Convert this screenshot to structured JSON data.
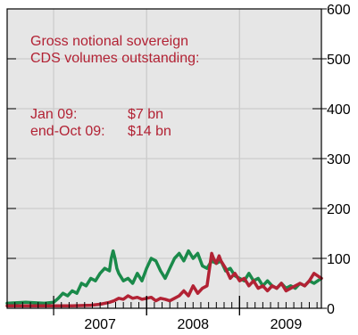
{
  "chart_data": {
    "type": "line",
    "title": "",
    "xlabel": "",
    "ylabel": "",
    "x_ticks": [
      "2007",
      "2008",
      "2009"
    ],
    "y_ticks": [
      "0",
      "100",
      "200",
      "300",
      "400",
      "500",
      "600"
    ],
    "ylim": [
      0,
      600
    ],
    "xlim": [
      2006.5,
      2009.88
    ],
    "grid": true,
    "y_axis_side": "right",
    "annotation": {
      "line1": "Gross notional sovereign",
      "line2": "CDS volumes outstanding:",
      "row1_label": "Jan 09:",
      "row1_value": "$7 bn",
      "row2_label": "end-Oct 09:",
      "row2_value": "$14 bn"
    },
    "colors": {
      "green": "#1a8a4a",
      "red": "#b22234",
      "grid": "#cccccc",
      "bg": "#e6e6e6"
    },
    "series": [
      {
        "color": "green",
        "x": [
          2006.5,
          2006.7,
          2006.9,
          2007.0,
          2007.05,
          2007.1,
          2007.15,
          2007.2,
          2007.25,
          2007.3,
          2007.35,
          2007.4,
          2007.45,
          2007.5,
          2007.55,
          2007.6,
          2007.62,
          2007.64,
          2007.66,
          2007.68,
          2007.7,
          2007.75,
          2007.8,
          2007.85,
          2007.9,
          2007.95,
          2008.0,
          2008.05,
          2008.1,
          2008.15,
          2008.2,
          2008.25,
          2008.3,
          2008.35,
          2008.4,
          2008.45,
          2008.5,
          2008.55,
          2008.6,
          2008.65,
          2008.7,
          2008.75,
          2008.8,
          2008.85,
          2008.9,
          2008.95,
          2009.0,
          2009.05,
          2009.1,
          2009.15,
          2009.2,
          2009.25,
          2009.3,
          2009.35,
          2009.4,
          2009.45,
          2009.5,
          2009.55,
          2009.6,
          2009.65,
          2009.7,
          2009.75,
          2009.8,
          2009.88
        ],
        "values": [
          10,
          12,
          10,
          12,
          20,
          30,
          25,
          35,
          30,
          50,
          45,
          60,
          55,
          70,
          80,
          75,
          100,
          115,
          100,
          80,
          70,
          55,
          60,
          50,
          70,
          55,
          80,
          100,
          95,
          75,
          60,
          80,
          100,
          110,
          95,
          115,
          100,
          110,
          85,
          80,
          95,
          90,
          95,
          75,
          80,
          65,
          60,
          55,
          70,
          55,
          60,
          45,
          55,
          45,
          40,
          50,
          40,
          45,
          40,
          50,
          45,
          55,
          50,
          60
        ]
      },
      {
        "color": "red",
        "x": [
          2006.5,
          2006.8,
          2007.0,
          2007.2,
          2007.4,
          2007.5,
          2007.55,
          2007.6,
          2007.65,
          2007.7,
          2007.75,
          2007.8,
          2007.85,
          2007.9,
          2007.95,
          2008.0,
          2008.05,
          2008.1,
          2008.15,
          2008.2,
          2008.25,
          2008.3,
          2008.35,
          2008.4,
          2008.45,
          2008.5,
          2008.55,
          2008.6,
          2008.65,
          2008.7,
          2008.72,
          2008.75,
          2008.78,
          2008.8,
          2008.85,
          2008.9,
          2008.95,
          2009.0,
          2009.05,
          2009.1,
          2009.15,
          2009.2,
          2009.25,
          2009.3,
          2009.35,
          2009.4,
          2009.45,
          2009.5,
          2009.55,
          2009.6,
          2009.65,
          2009.7,
          2009.75,
          2009.8,
          2009.88
        ],
        "values": [
          5,
          5,
          5,
          5,
          6,
          8,
          10,
          12,
          15,
          20,
          18,
          25,
          20,
          22,
          18,
          20,
          22,
          15,
          20,
          18,
          15,
          20,
          25,
          35,
          25,
          45,
          30,
          40,
          45,
          110,
          100,
          90,
          105,
          95,
          80,
          60,
          70,
          55,
          60,
          45,
          55,
          40,
          45,
          35,
          45,
          40,
          50,
          35,
          40,
          45,
          50,
          45,
          55,
          70,
          60
        ]
      }
    ]
  }
}
